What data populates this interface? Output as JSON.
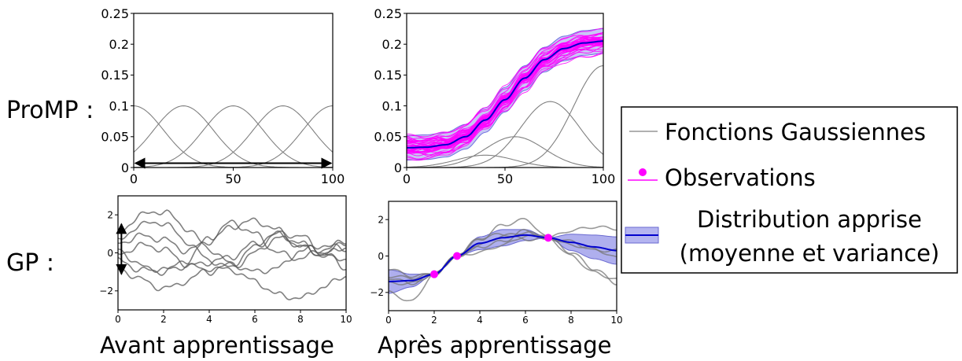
{
  "row_labels": {
    "promp": "ProMP :",
    "gp": "GP :"
  },
  "column_labels": {
    "before": "Avant apprentissage",
    "after": "Après apprentissage"
  },
  "legend": {
    "gaussian": "Fonctions Gaussiennes",
    "observations": "Observations",
    "distribution_line1": "Distribution apprise",
    "distribution_line2": "(moyenne et variance)"
  },
  "colors": {
    "basis": "#808080",
    "samples": "#ff00ff",
    "mean": "#0000cd",
    "band": "#b4b4f0",
    "gp_prior": "#555555",
    "gp_post": "#777777"
  },
  "chart_data": [
    {
      "id": "promp-before",
      "type": "line",
      "xlim": [
        0,
        100
      ],
      "ylim": [
        0,
        0.25
      ],
      "xticks": [
        0,
        50,
        100
      ],
      "yticks": [
        0,
        0.05,
        0.1,
        0.15,
        0.2,
        0.25
      ],
      "xtick_labels": [
        "0",
        "50",
        "100"
      ],
      "ytick_labels": [
        "0",
        "0.05",
        "0.1",
        "0.15",
        "0.2",
        "0.25"
      ],
      "basis": {
        "centers": [
          0,
          25,
          50,
          75,
          100
        ],
        "width": 15,
        "amplitude": 0.1
      },
      "annotation": {
        "type": "double-arrow",
        "from": [
          0,
          0.007
        ],
        "to": [
          100,
          0.007
        ]
      }
    },
    {
      "id": "promp-after",
      "type": "line",
      "xlim": [
        0,
        100
      ],
      "ylim": [
        0,
        0.25
      ],
      "xticks": [
        0,
        50,
        100
      ],
      "yticks": [
        0,
        0.05,
        0.1,
        0.15,
        0.2,
        0.25
      ],
      "xtick_labels": [
        "0",
        "50",
        "100"
      ],
      "ytick_labels": [
        "0",
        "0.05",
        "0.1",
        "0.15",
        "0.2",
        "0.25"
      ],
      "mean": {
        "x": [
          0,
          10,
          20,
          30,
          40,
          50,
          60,
          70,
          80,
          90,
          100
        ],
        "y": [
          0.032,
          0.033,
          0.037,
          0.05,
          0.077,
          0.11,
          0.145,
          0.175,
          0.193,
          0.202,
          0.205
        ]
      },
      "band_halfwidth": 0.02,
      "n_samples": 50,
      "basis": [
        {
          "center": 40,
          "width": 15,
          "amplitude": 0.02
        },
        {
          "center": 55,
          "width": 15,
          "amplitude": 0.05
        },
        {
          "center": 73,
          "width": 15,
          "amplitude": 0.107
        },
        {
          "center": 100,
          "width": 15,
          "amplitude": 0.165
        }
      ]
    },
    {
      "id": "gp-before",
      "type": "line",
      "xlim": [
        0,
        10
      ],
      "ylim": [
        -3,
        3
      ],
      "xticks": [
        0,
        2,
        4,
        6,
        8,
        10
      ],
      "yticks": [
        -2,
        0,
        2
      ],
      "xtick_labels": [
        "0",
        "2",
        "4",
        "6",
        "8",
        "10"
      ],
      "ytick_labels": [
        "−2",
        "0",
        "2"
      ],
      "samples": [
        {
          "x": [
            0,
            1,
            2,
            3,
            4,
            5,
            6,
            7,
            8,
            9,
            10
          ],
          "y": [
            1.0,
            2.0,
            2.2,
            1.3,
            0.2,
            -0.6,
            -1.0,
            -0.8,
            0.1,
            0.4,
            0.2
          ]
        },
        {
          "x": [
            0,
            1,
            2,
            3,
            4,
            5,
            6,
            7,
            8,
            9,
            10
          ],
          "y": [
            0.6,
            1.5,
            1.6,
            0.6,
            -0.4,
            -0.8,
            0.0,
            0.8,
            0.4,
            0.0,
            0.5
          ]
        },
        {
          "x": [
            0,
            1,
            2,
            3,
            4,
            5,
            6,
            7,
            8,
            9,
            10
          ],
          "y": [
            -0.4,
            -0.9,
            -1.0,
            -0.4,
            0.8,
            1.6,
            1.0,
            0.0,
            -0.3,
            0.2,
            0.6
          ]
        },
        {
          "x": [
            0,
            1,
            2,
            3,
            4,
            5,
            6,
            7,
            8,
            9,
            10
          ],
          "y": [
            0.2,
            -0.7,
            -0.9,
            -0.7,
            -0.5,
            -0.2,
            0.5,
            1.0,
            0.5,
            -0.2,
            -0.3
          ]
        },
        {
          "x": [
            0,
            1,
            2,
            3,
            4,
            5,
            6,
            7,
            8,
            9,
            10
          ],
          "y": [
            -0.8,
            -1.4,
            -1.9,
            -1.5,
            -0.8,
            -0.9,
            -1.5,
            -2.2,
            -2.4,
            -1.8,
            -1.2
          ]
        },
        {
          "x": [
            0,
            1,
            2,
            3,
            4,
            5,
            6,
            7,
            8,
            9,
            10
          ],
          "y": [
            -0.1,
            0.4,
            0.2,
            -0.6,
            -1.0,
            -0.6,
            0.3,
            1.0,
            0.9,
            0.0,
            -0.8
          ]
        },
        {
          "x": [
            0,
            1,
            2,
            3,
            4,
            5,
            6,
            7,
            8,
            9,
            10
          ],
          "y": [
            0.5,
            0.9,
            0.7,
            0.1,
            0.6,
            1.4,
            1.7,
            1.2,
            0.3,
            -0.1,
            0.3
          ]
        }
      ],
      "annotation": {
        "type": "double-arrow",
        "from": [
          0.15,
          -1.2
        ],
        "to": [
          0.15,
          1.6
        ]
      }
    },
    {
      "id": "gp-after",
      "type": "line",
      "xlim": [
        0,
        10
      ],
      "ylim": [
        -3,
        3
      ],
      "xticks": [
        0,
        2,
        4,
        6,
        8,
        10
      ],
      "yticks": [
        -2,
        0,
        2
      ],
      "xtick_labels": [
        "0",
        "2",
        "4",
        "6",
        "8",
        "10"
      ],
      "ytick_labels": [
        "−2",
        "0",
        "2"
      ],
      "mean": {
        "x": [
          0,
          1,
          2,
          3,
          4,
          5,
          6,
          7,
          8,
          9,
          10
        ],
        "y": [
          -1.4,
          -1.35,
          -1.0,
          0.0,
          0.7,
          1.0,
          1.15,
          1.0,
          0.75,
          0.5,
          0.3
        ]
      },
      "band_halfwidth": [
        0.65,
        0.35,
        0.0,
        0.0,
        0.35,
        0.45,
        0.3,
        0.0,
        0.45,
        0.65,
        0.75
      ],
      "observations": {
        "x": [
          2,
          3,
          7
        ],
        "y": [
          -1.0,
          0.0,
          1.0
        ]
      },
      "samples": [
        {
          "x": [
            0,
            1,
            2,
            3,
            4,
            5,
            6,
            7,
            8,
            9,
            10
          ],
          "y": [
            -1.5,
            -1.5,
            -1.0,
            0.0,
            0.6,
            1.1,
            1.3,
            1.0,
            0.2,
            -0.7,
            -1.5
          ]
        },
        {
          "x": [
            0,
            1,
            2,
            3,
            4,
            5,
            6,
            7,
            8,
            9,
            10
          ],
          "y": [
            -1.2,
            -1.5,
            -1.0,
            0.0,
            0.9,
            1.7,
            2.0,
            1.0,
            0.8,
            0.3,
            0.3
          ]
        },
        {
          "x": [
            0,
            1,
            2,
            3,
            4,
            5,
            6,
            7,
            8,
            9,
            10
          ],
          "y": [
            -2.0,
            -2.5,
            -1.0,
            0.0,
            0.2,
            0.6,
            1.1,
            1.0,
            1.4,
            1.6,
            1.5
          ]
        },
        {
          "x": [
            0,
            1,
            2,
            3,
            4,
            5,
            6,
            7,
            8,
            9,
            10
          ],
          "y": [
            -0.7,
            -1.1,
            -1.0,
            0.0,
            1.0,
            1.2,
            0.9,
            1.0,
            0.6,
            0.4,
            -0.1
          ]
        },
        {
          "x": [
            0,
            1,
            2,
            3,
            4,
            5,
            6,
            7,
            8,
            9,
            10
          ],
          "y": [
            -1.1,
            -1.2,
            -1.0,
            0.0,
            0.5,
            0.8,
            1.4,
            1.0,
            0.0,
            -0.9,
            -1.3
          ]
        }
      ]
    }
  ]
}
